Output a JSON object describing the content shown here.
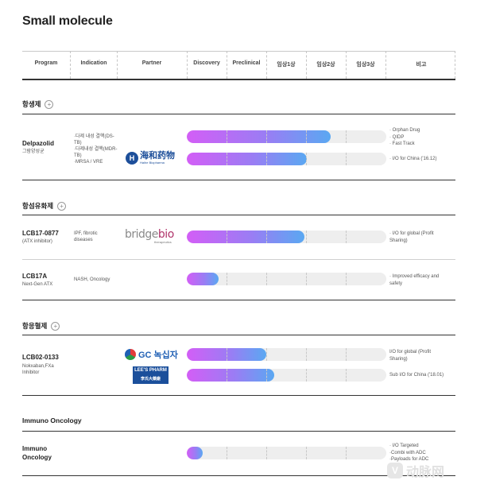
{
  "page_title": "Small molecule",
  "columns": [
    "Program",
    "Indication",
    "Partner",
    "Discovery",
    "Preclinical",
    "임상1상",
    "임상2상",
    "임상3상",
    "비고"
  ],
  "sections": [
    {
      "name": "항생제",
      "rows": [
        {
          "program": "Delpazolid",
          "program_sub": "그람양성균",
          "indication": [
            "·다제 내성 결핵(DS-TB)",
            "·다제내성 결핵(MDR-TB)",
            "·MRSA / VRE"
          ],
          "partner": "海和药物",
          "bars": [
            {
              "progress": 0.72,
              "notes": [
                "· Orphan Drug",
                "· QIDP",
                "· Fast Track"
              ]
            },
            {
              "progress": 0.6,
              "notes": [
                "· I/O for China ('16.12)"
              ]
            }
          ]
        }
      ]
    },
    {
      "name": "항섬유화제",
      "rows": [
        {
          "program": "LCB17-0877",
          "program_sub": "(ATX inhibitor)",
          "indication": [
            "IPF, fibrotic",
            "diseases"
          ],
          "partner": "bridgebio",
          "partner_sub": "therapeutics",
          "bars": [
            {
              "progress": 0.59,
              "notes": [
                "· I/O for global (Profit",
                "Sharing)"
              ]
            }
          ]
        },
        {
          "program": "LCB17A",
          "program_sub": "Next-Gen ATX",
          "indication": [
            "NASH, Oncology"
          ],
          "bars": [
            {
              "progress": 0.16,
              "notes": [
                "· Improved efficacy and",
                "safety"
              ]
            }
          ]
        }
      ]
    },
    {
      "name": "항응혈제",
      "rows": [
        {
          "program": "LCB02-0133",
          "program_sub": [
            "Nokxaban,FXa",
            "Inhibitor"
          ],
          "partner": "GC 녹십자",
          "partner2": [
            "LEE'S PHARM",
            "李氏大藥廠"
          ],
          "bars": [
            {
              "progress": 0.4,
              "notes": [
                "I/O for global (Profit",
                "Sharing)"
              ]
            },
            {
              "progress": 0.44,
              "notes": [
                "Sub I/O for China ('18.01)"
              ]
            }
          ]
        }
      ]
    },
    {
      "name": "Immuno Oncology",
      "rows": [
        {
          "program": [
            "Immuno",
            "Oncology"
          ],
          "bars": [
            {
              "progress": 0.08,
              "notes": [
                "· I/O Targeted",
                "·Combi with ADC",
                "·Payloads for ADC"
              ]
            }
          ]
        }
      ]
    }
  ],
  "watermark": "动脉网",
  "colors": {
    "bar_start": "#d35ef6",
    "bar_end": "#5aa8f2",
    "track": "#eeeeee"
  }
}
